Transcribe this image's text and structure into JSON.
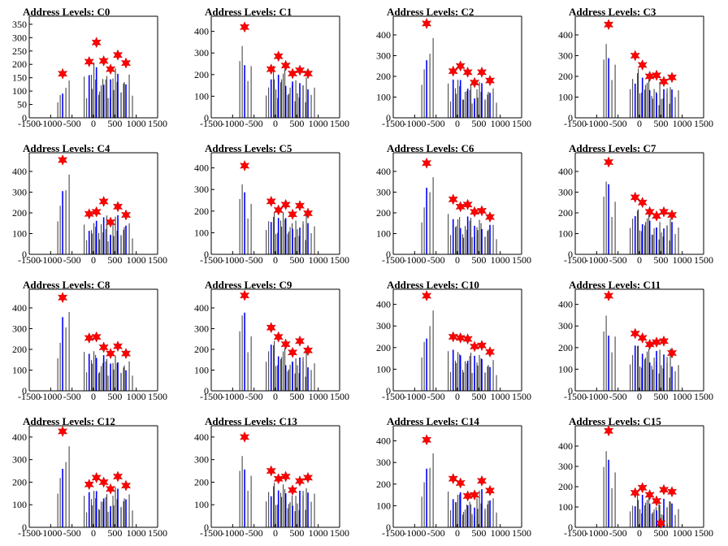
{
  "page_title": "",
  "chart_data": [
    {
      "type": "bar",
      "title": "Address Levels: C0",
      "xlim": [
        -1500,
        1500
      ],
      "ylim": [
        0,
        380
      ],
      "xticks": [
        -1500,
        -1000,
        -500,
        0,
        500,
        1000,
        1500
      ],
      "yticks": [
        0,
        50,
        100,
        150,
        200,
        250,
        300,
        350
      ],
      "peaks": [
        {
          "x": -720,
          "y": 165
        },
        {
          "x": -100,
          "y": 210
        },
        {
          "x": 70,
          "y": 282
        },
        {
          "x": 240,
          "y": 213
        },
        {
          "x": 400,
          "y": 182
        },
        {
          "x": 570,
          "y": 235
        },
        {
          "x": 760,
          "y": 205
        }
      ]
    },
    {
      "type": "bar",
      "title": "Address Levels: C1",
      "xlim": [
        -1500,
        1500
      ],
      "ylim": [
        0,
        470
      ],
      "xticks": [
        -1500,
        -1000,
        -500,
        0,
        500,
        1000,
        1500
      ],
      "yticks": [
        0,
        100,
        200,
        300,
        400
      ],
      "peaks": [
        {
          "x": -720,
          "y": 420
        },
        {
          "x": -100,
          "y": 225
        },
        {
          "x": 70,
          "y": 285
        },
        {
          "x": 240,
          "y": 242
        },
        {
          "x": 400,
          "y": 205
        },
        {
          "x": 570,
          "y": 220
        },
        {
          "x": 760,
          "y": 205
        }
      ]
    },
    {
      "type": "bar",
      "title": "Address Levels: C2",
      "xlim": [
        -1500,
        1500
      ],
      "ylim": [
        0,
        490
      ],
      "xticks": [
        -1500,
        -1000,
        -500,
        0,
        500,
        1000,
        1500
      ],
      "yticks": [
        0,
        100,
        200,
        300,
        400
      ],
      "peaks": [
        {
          "x": -720,
          "y": 455
        },
        {
          "x": -100,
          "y": 225
        },
        {
          "x": 70,
          "y": 250
        },
        {
          "x": 240,
          "y": 220
        },
        {
          "x": 400,
          "y": 170
        },
        {
          "x": 570,
          "y": 220
        },
        {
          "x": 760,
          "y": 180
        }
      ]
    },
    {
      "type": "bar",
      "title": "Address Levels: C3",
      "xlim": [
        -1500,
        1500
      ],
      "ylim": [
        0,
        490
      ],
      "xticks": [
        -1500,
        -1000,
        -500,
        0,
        500,
        1000,
        1500
      ],
      "yticks": [
        0,
        100,
        200,
        300,
        400
      ],
      "peaks": [
        {
          "x": -720,
          "y": 450
        },
        {
          "x": -100,
          "y": 300
        },
        {
          "x": 70,
          "y": 255
        },
        {
          "x": 240,
          "y": 200
        },
        {
          "x": 400,
          "y": 205
        },
        {
          "x": 570,
          "y": 175
        },
        {
          "x": 760,
          "y": 195
        }
      ]
    },
    {
      "type": "bar",
      "title": "Address Levels: C4",
      "xlim": [
        -1500,
        1500
      ],
      "ylim": [
        0,
        490
      ],
      "xticks": [
        -1500,
        -1000,
        -500,
        0,
        500,
        1000,
        1500
      ],
      "yticks": [
        0,
        100,
        200,
        300,
        400
      ],
      "peaks": [
        {
          "x": -720,
          "y": 455
        },
        {
          "x": -100,
          "y": 195
        },
        {
          "x": 70,
          "y": 205
        },
        {
          "x": 240,
          "y": 255
        },
        {
          "x": 400,
          "y": 155
        },
        {
          "x": 570,
          "y": 230
        },
        {
          "x": 760,
          "y": 190
        }
      ]
    },
    {
      "type": "bar",
      "title": "Address Levels: C5",
      "xlim": [
        -1500,
        1500
      ],
      "ylim": [
        0,
        470
      ],
      "xticks": [
        -1500,
        -1000,
        -500,
        0,
        500,
        1000,
        1500
      ],
      "yticks": [
        0,
        100,
        200,
        300,
        400
      ],
      "peaks": [
        {
          "x": -720,
          "y": 410
        },
        {
          "x": -100,
          "y": 245
        },
        {
          "x": 70,
          "y": 205
        },
        {
          "x": 240,
          "y": 230
        },
        {
          "x": 400,
          "y": 185
        },
        {
          "x": 570,
          "y": 225
        },
        {
          "x": 760,
          "y": 190
        }
      ]
    },
    {
      "type": "bar",
      "title": "Address Levels: C6",
      "xlim": [
        -1500,
        1500
      ],
      "ylim": [
        0,
        490
      ],
      "xticks": [
        -1500,
        -1000,
        -500,
        0,
        500,
        1000,
        1500
      ],
      "yticks": [
        0,
        100,
        200,
        300,
        400
      ],
      "peaks": [
        {
          "x": -720,
          "y": 440
        },
        {
          "x": -100,
          "y": 265
        },
        {
          "x": 70,
          "y": 230
        },
        {
          "x": 240,
          "y": 240
        },
        {
          "x": 400,
          "y": 205
        },
        {
          "x": 570,
          "y": 210
        },
        {
          "x": 760,
          "y": 180
        }
      ]
    },
    {
      "type": "bar",
      "title": "Address Levels: C7",
      "xlim": [
        -1500,
        1500
      ],
      "ylim": [
        0,
        490
      ],
      "xticks": [
        -1500,
        -1000,
        -500,
        0,
        500,
        1000,
        1500
      ],
      "yticks": [
        0,
        100,
        200,
        300,
        400
      ],
      "peaks": [
        {
          "x": -720,
          "y": 445
        },
        {
          "x": -100,
          "y": 275
        },
        {
          "x": 70,
          "y": 250
        },
        {
          "x": 240,
          "y": 205
        },
        {
          "x": 400,
          "y": 185
        },
        {
          "x": 570,
          "y": 205
        },
        {
          "x": 760,
          "y": 190
        }
      ]
    },
    {
      "type": "bar",
      "title": "Address Levels: C8",
      "xlim": [
        -1500,
        1500
      ],
      "ylim": [
        0,
        490
      ],
      "xticks": [
        -1500,
        -1000,
        -500,
        0,
        500,
        1000,
        1500
      ],
      "yticks": [
        0,
        100,
        200,
        300,
        400
      ],
      "peaks": [
        {
          "x": -720,
          "y": 450
        },
        {
          "x": -100,
          "y": 255
        },
        {
          "x": 70,
          "y": 260
        },
        {
          "x": 240,
          "y": 210
        },
        {
          "x": 400,
          "y": 180
        },
        {
          "x": 570,
          "y": 215
        },
        {
          "x": 760,
          "y": 180
        }
      ]
    },
    {
      "type": "bar",
      "title": "Address Levels: C9",
      "xlim": [
        -1500,
        1500
      ],
      "ylim": [
        0,
        490
      ],
      "xticks": [
        -1500,
        -1000,
        -500,
        0,
        500,
        1000,
        1500
      ],
      "yticks": [
        0,
        100,
        200,
        300,
        400
      ],
      "peaks": [
        {
          "x": -720,
          "y": 460
        },
        {
          "x": -100,
          "y": 305
        },
        {
          "x": 70,
          "y": 260
        },
        {
          "x": 240,
          "y": 225
        },
        {
          "x": 400,
          "y": 185
        },
        {
          "x": 570,
          "y": 240
        },
        {
          "x": 760,
          "y": 195
        }
      ]
    },
    {
      "type": "bar",
      "title": "Address Levels: C10",
      "xlim": [
        -1500,
        1500
      ],
      "ylim": [
        0,
        470
      ],
      "xticks": [
        -1500,
        -1000,
        -500,
        0,
        500,
        1000,
        1500
      ],
      "yticks": [
        0,
        100,
        200,
        300,
        400
      ],
      "peaks": [
        {
          "x": -720,
          "y": 440
        },
        {
          "x": -100,
          "y": 250
        },
        {
          "x": 70,
          "y": 245
        },
        {
          "x": 240,
          "y": 240
        },
        {
          "x": 400,
          "y": 205
        },
        {
          "x": 570,
          "y": 210
        },
        {
          "x": 760,
          "y": 180
        }
      ]
    },
    {
      "type": "bar",
      "title": "Address Levels: C11",
      "xlim": [
        -1500,
        1500
      ],
      "ylim": [
        0,
        470
      ],
      "xticks": [
        -1500,
        -1000,
        -500,
        0,
        500,
        1000,
        1500
      ],
      "yticks": [
        0,
        100,
        200,
        300,
        400
      ],
      "peaks": [
        {
          "x": -720,
          "y": 440
        },
        {
          "x": -100,
          "y": 265
        },
        {
          "x": 70,
          "y": 245
        },
        {
          "x": 240,
          "y": 215
        },
        {
          "x": 400,
          "y": 225
        },
        {
          "x": 570,
          "y": 230
        },
        {
          "x": 760,
          "y": 175
        }
      ]
    },
    {
      "type": "bar",
      "title": "Address Levels: C12",
      "xlim": [
        -1500,
        1500
      ],
      "ylim": [
        0,
        450
      ],
      "xticks": [
        -1500,
        -1000,
        -500,
        0,
        500,
        1000,
        1500
      ],
      "yticks": [
        0,
        100,
        200,
        300,
        400
      ],
      "peaks": [
        {
          "x": -720,
          "y": 425
        },
        {
          "x": -100,
          "y": 190
        },
        {
          "x": 70,
          "y": 220
        },
        {
          "x": 240,
          "y": 200
        },
        {
          "x": 400,
          "y": 170
        },
        {
          "x": 570,
          "y": 225
        },
        {
          "x": 760,
          "y": 185
        }
      ]
    },
    {
      "type": "bar",
      "title": "Address Levels: C13",
      "xlim": [
        -1500,
        1500
      ],
      "ylim": [
        0,
        450
      ],
      "xticks": [
        -1500,
        -1000,
        -500,
        0,
        500,
        1000,
        1500
      ],
      "yticks": [
        0,
        100,
        200,
        300,
        400
      ],
      "peaks": [
        {
          "x": -720,
          "y": 400
        },
        {
          "x": -100,
          "y": 250
        },
        {
          "x": 70,
          "y": 215
        },
        {
          "x": 240,
          "y": 225
        },
        {
          "x": 400,
          "y": 165
        },
        {
          "x": 570,
          "y": 205
        },
        {
          "x": 760,
          "y": 220
        }
      ]
    },
    {
      "type": "bar",
      "title": "Address Levels: C14",
      "xlim": [
        -1500,
        1500
      ],
      "ylim": [
        0,
        470
      ],
      "xticks": [
        -1500,
        -1000,
        -500,
        0,
        500,
        1000,
        1500
      ],
      "yticks": [
        0,
        100,
        200,
        300,
        400
      ],
      "peaks": [
        {
          "x": -720,
          "y": 405
        },
        {
          "x": -100,
          "y": 225
        },
        {
          "x": 70,
          "y": 205
        },
        {
          "x": 240,
          "y": 145
        },
        {
          "x": 400,
          "y": 150
        },
        {
          "x": 570,
          "y": 215
        },
        {
          "x": 760,
          "y": 170
        }
      ]
    },
    {
      "type": "bar",
      "title": "Address Levels: C15",
      "xlim": [
        -1500,
        1500
      ],
      "ylim": [
        0,
        500
      ],
      "xticks": [
        -1500,
        -1000,
        -500,
        0,
        500,
        1000,
        1500
      ],
      "yticks": [
        0,
        100,
        200,
        300,
        400
      ],
      "peaks": [
        {
          "x": -720,
          "y": 475
        },
        {
          "x": -100,
          "y": 170
        },
        {
          "x": 70,
          "y": 195
        },
        {
          "x": 240,
          "y": 160
        },
        {
          "x": 400,
          "y": 130
        },
        {
          "x": 500,
          "y": 20
        },
        {
          "x": 570,
          "y": 185
        },
        {
          "x": 760,
          "y": 175
        }
      ]
    }
  ],
  "colors": {
    "bars": "#0000ff",
    "stems": "#000000",
    "markers": "#ff0000",
    "axes": "#000000"
  },
  "marker_icon": "star-icon"
}
